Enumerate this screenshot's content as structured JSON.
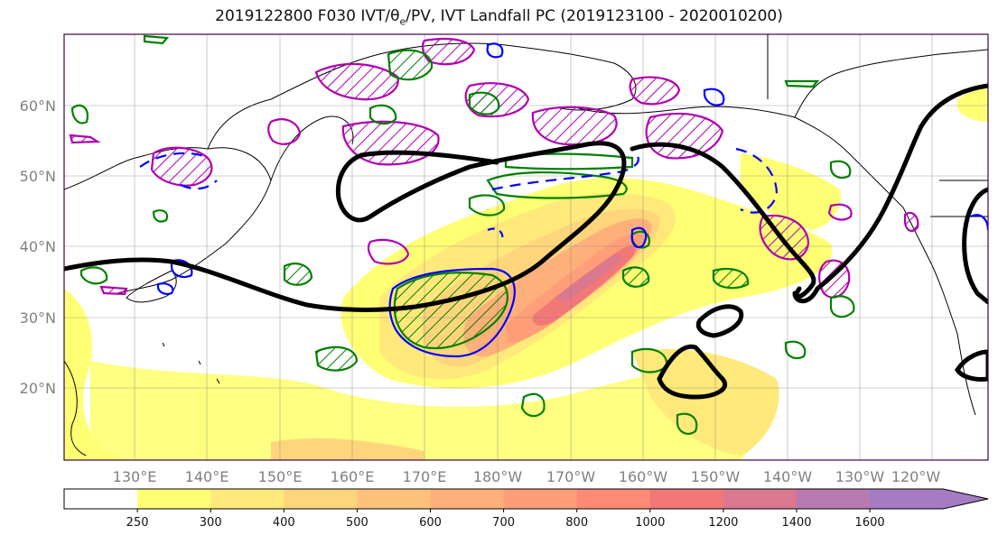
{
  "title": "2019122800 F030 IVT/θ",
  "title_sub": "e",
  "title_rest": "/PV, IVT Landfall PC (2019123100 - 2020010200)",
  "lat_labels": [
    "60°N",
    "50°N",
    "40°N",
    "30°N",
    "20°N"
  ],
  "lon_labels": [
    "130°E",
    "140°E",
    "150°E",
    "160°E",
    "170°E",
    "180°W",
    "170°W",
    "160°W",
    "150°W",
    "140°W",
    "130°W",
    "120°W"
  ],
  "colorbar": {
    "ticks": [
      "250",
      "300",
      "400",
      "500",
      "600",
      "700",
      "800",
      "1000",
      "1200",
      "1400",
      "1600"
    ],
    "colors": [
      "#ffffff",
      "#ffff73",
      "#ffe97a",
      "#ffd57c",
      "#ffc27c",
      "#ffb07a",
      "#ff9e78",
      "#ff8a76",
      "#f27878",
      "#d9788f",
      "#b87ab0",
      "#a57bc4"
    ],
    "extend": "max"
  },
  "legend_colors": {
    "ivt_fill_low": "#ffff73",
    "ivt_fill_high": "#f27878",
    "theta_e": "#000000",
    "pv_green": "#008000",
    "pv_magenta": "#b000b0",
    "pv_blue": "#0000ff"
  }
}
